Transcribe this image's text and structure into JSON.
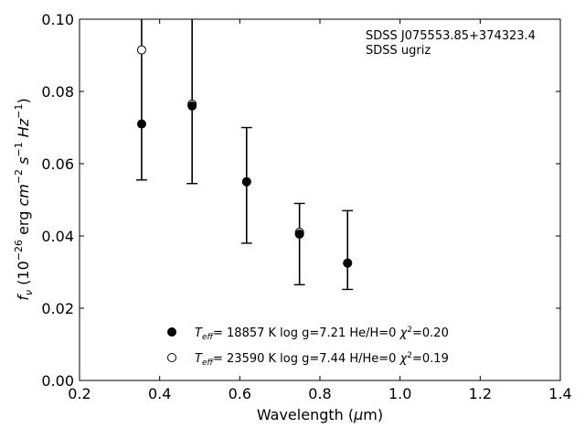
{
  "chart_data": {
    "type": "scatter",
    "object_id": "SDSS J075553.85+374323.4",
    "survey": "SDSS ugriz",
    "xlabel": "Wavelength (μm)",
    "ylabel": "f_ν (10^-26 erg cm^-2 s^-1 Hz^-1)",
    "xlim": [
      0.2,
      1.4
    ],
    "ylim": [
      0.0,
      0.1
    ],
    "xticks": [
      0.2,
      0.4,
      0.6,
      0.8,
      1.0,
      1.2,
      1.4
    ],
    "yticks": [
      0.0,
      0.02,
      0.04,
      0.06,
      0.08,
      0.1
    ],
    "xtick_labels": [
      "0.2",
      "0.4",
      "0.6",
      "0.8",
      "1.0",
      "1.2",
      "1.4"
    ],
    "ytick_labels": [
      "0.00",
      "0.02",
      "0.04",
      "0.06",
      "0.08",
      "0.10"
    ],
    "grid": false,
    "observed": {
      "x": [
        0.355,
        0.481,
        0.617,
        0.749,
        0.869
      ],
      "y": [
        0.071,
        0.076,
        0.055,
        0.041,
        0.0325
      ],
      "yerr_low": [
        0.0555,
        0.0545,
        0.038,
        0.0265,
        0.0252
      ],
      "yerr_high": [
        0.104,
        0.104,
        0.07,
        0.049,
        0.047
      ]
    },
    "series": [
      {
        "name": "T_eff= 18857 K  log g=7.21  He/H=0  χ²=0.20",
        "marker": "filled-circle",
        "x": [
          0.355,
          0.481,
          0.617,
          0.749,
          0.869
        ],
        "y": [
          0.071,
          0.076,
          0.055,
          0.0405,
          0.0325
        ]
      },
      {
        "name": "T_eff= 23590 K  log g=7.44  H/He=0  χ²=0.19",
        "marker": "open-circle",
        "x": [
          0.355,
          0.481,
          0.617,
          0.749,
          0.869
        ],
        "y": [
          0.0915,
          0.0765,
          0.055,
          0.041,
          0.0325
        ]
      }
    ],
    "legend_location": "lower-center"
  }
}
